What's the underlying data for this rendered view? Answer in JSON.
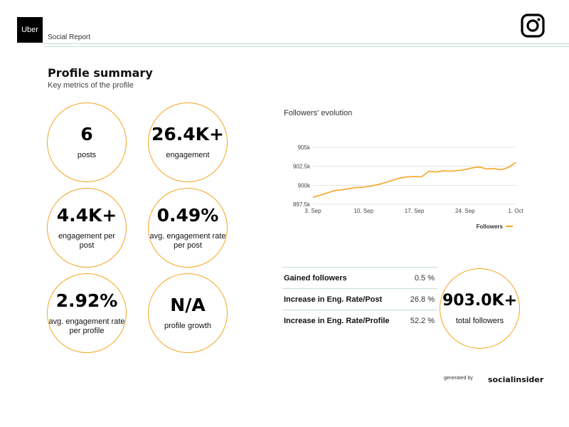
{
  "brand": {
    "logo_text": "Uber",
    "report_label": "Social Report",
    "platform_icon": "instagram-icon"
  },
  "summary": {
    "title": "Profile summary",
    "subtitle": "Key metrics of the profile"
  },
  "metrics": [
    {
      "value": "6",
      "label": "posts"
    },
    {
      "value": "26.4K+",
      "label": "engagement"
    },
    {
      "value": "4.4K+",
      "label": "engagement per post"
    },
    {
      "value": "0.49%",
      "label": "avg. engagement rate per post"
    },
    {
      "value": "2.92%",
      "label": "avg. engagement rate per profile"
    },
    {
      "value": "N/A",
      "label": "profile growth"
    }
  ],
  "followers_chart": {
    "title": "Followers' evolution",
    "chart_data": {
      "type": "line",
      "title": "Followers' evolution",
      "x_ticks": [
        "3. Sep",
        "10. Sep",
        "17. Sep",
        "24. Sep",
        "1. Oct"
      ],
      "y_ticks": [
        "897.5k",
        "900k",
        "902.5k",
        "905k"
      ],
      "ylim": [
        897500,
        905000
      ],
      "grid": true,
      "legend_position": "bottom-right",
      "series": [
        {
          "name": "Followers",
          "color": "#f5a623",
          "x": [
            "3. Sep",
            "4. Sep",
            "5. Sep",
            "6. Sep",
            "7. Sep",
            "8. Sep",
            "9. Sep",
            "10. Sep",
            "11. Sep",
            "12. Sep",
            "13. Sep",
            "14. Sep",
            "15. Sep",
            "16. Sep",
            "17. Sep",
            "18. Sep",
            "19. Sep",
            "20. Sep",
            "21. Sep",
            "22. Sep",
            "23. Sep",
            "24. Sep",
            "25. Sep",
            "26. Sep",
            "27. Sep",
            "28. Sep",
            "29. Sep",
            "30. Sep",
            "1. Oct"
          ],
          "values": [
            898400,
            898700,
            899000,
            899300,
            899400,
            899550,
            899700,
            899750,
            899900,
            900100,
            900350,
            900650,
            900950,
            901100,
            901150,
            901100,
            901850,
            901750,
            901900,
            901850,
            901950,
            902050,
            902300,
            902400,
            902150,
            902200,
            902050,
            902350,
            903000
          ]
        }
      ]
    }
  },
  "stats": [
    {
      "label": "Gained followers",
      "value": "0.5 %"
    },
    {
      "label": "Increase in Eng. Rate/Post",
      "value": "26.8 %"
    },
    {
      "label": "Increase in Eng. Rate/Profile",
      "value": "52.2 %"
    }
  ],
  "total_followers": {
    "value": "903.0K+",
    "label": "total followers"
  },
  "footer": {
    "generated_by": "generated by",
    "brand": "socialinsider"
  },
  "colors": {
    "accent": "#f5a623",
    "divider": "#c6ddd8",
    "text": "#111111"
  }
}
